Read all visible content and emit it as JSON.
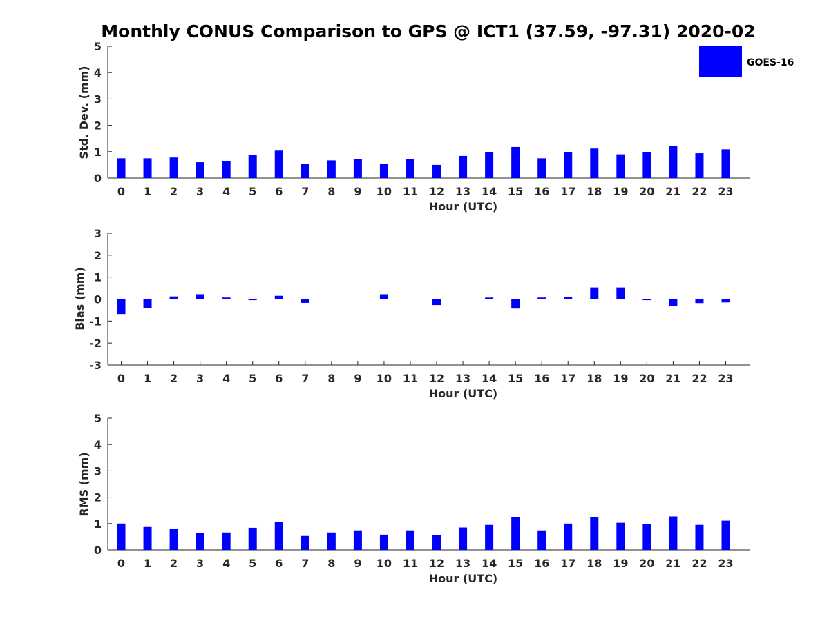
{
  "title": "Monthly CONUS Comparison to GPS @ ICT1 (37.59, -97.31) 2020-02",
  "legend": {
    "label": "GOES-16",
    "color": "#0000ff",
    "placement": "top-right"
  },
  "chart_data": [
    {
      "type": "bar",
      "xlabel": "Hour (UTC)",
      "ylabel": "Std. Dev. (mm)",
      "ylim": [
        0,
        5
      ],
      "yticks": [
        0,
        1,
        2,
        3,
        4,
        5
      ],
      "categories": [
        0,
        1,
        2,
        3,
        4,
        5,
        6,
        7,
        8,
        9,
        10,
        11,
        12,
        13,
        14,
        15,
        16,
        17,
        18,
        19,
        20,
        21,
        22,
        23
      ],
      "series": [
        {
          "name": "GOES-16",
          "color": "#0000ff",
          "values": [
            0.75,
            0.75,
            0.78,
            0.6,
            0.65,
            0.87,
            1.04,
            0.53,
            0.67,
            0.73,
            0.55,
            0.73,
            0.5,
            0.84,
            0.97,
            1.18,
            0.75,
            0.98,
            1.12,
            0.9,
            0.97,
            1.23,
            0.94,
            1.09
          ]
        }
      ]
    },
    {
      "type": "bar",
      "xlabel": "Hour (UTC)",
      "ylabel": "Bias (mm)",
      "ylim": [
        -3,
        3
      ],
      "yticks": [
        -3,
        -2,
        -1,
        0,
        1,
        2,
        3
      ],
      "categories": [
        0,
        1,
        2,
        3,
        4,
        5,
        6,
        7,
        8,
        9,
        10,
        11,
        12,
        13,
        14,
        15,
        16,
        17,
        18,
        19,
        20,
        21,
        22,
        23
      ],
      "series": [
        {
          "name": "GOES-16",
          "color": "#0000ff",
          "values": [
            -0.68,
            -0.42,
            0.12,
            0.22,
            0.07,
            -0.05,
            0.15,
            -0.17,
            0.0,
            0.0,
            0.22,
            0.0,
            -0.27,
            0.0,
            0.07,
            -0.43,
            0.07,
            0.1,
            0.53,
            0.53,
            -0.05,
            -0.33,
            -0.18,
            -0.15
          ]
        }
      ]
    },
    {
      "type": "bar",
      "xlabel": "Hour (UTC)",
      "ylabel": "RMS (mm)",
      "ylim": [
        0,
        5
      ],
      "yticks": [
        0,
        1,
        2,
        3,
        4,
        5
      ],
      "categories": [
        0,
        1,
        2,
        3,
        4,
        5,
        6,
        7,
        8,
        9,
        10,
        11,
        12,
        13,
        14,
        15,
        16,
        17,
        18,
        19,
        20,
        21,
        22,
        23
      ],
      "series": [
        {
          "name": "GOES-16",
          "color": "#0000ff",
          "values": [
            1.0,
            0.87,
            0.79,
            0.63,
            0.66,
            0.84,
            1.05,
            0.53,
            0.66,
            0.74,
            0.58,
            0.74,
            0.56,
            0.85,
            0.95,
            1.24,
            0.74,
            1.0,
            1.24,
            1.03,
            0.98,
            1.27,
            0.95,
            1.11
          ]
        }
      ]
    }
  ]
}
